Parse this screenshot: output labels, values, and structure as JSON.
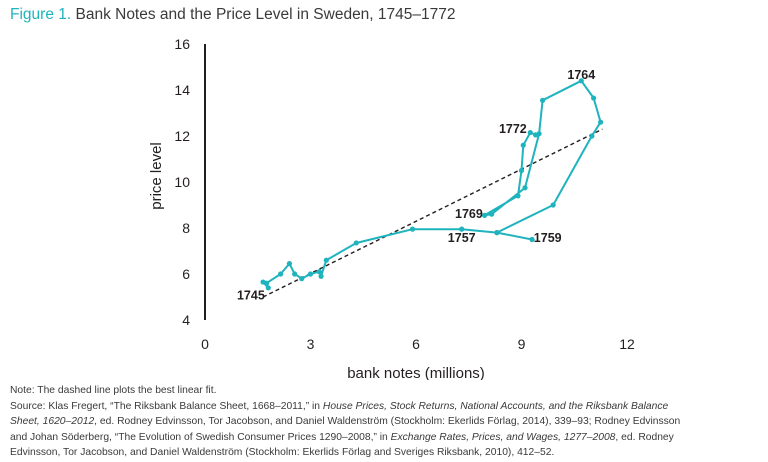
{
  "figure": {
    "number": "Figure 1.",
    "title": "Bank Notes and the Price Level in Sweden, 1745–1772"
  },
  "chart_data": {
    "type": "line",
    "title": "Bank Notes and the Price Level in Sweden, 1745–1772",
    "xlabel": "bank notes (millions)",
    "ylabel": "price level",
    "xlim": [
      0,
      12
    ],
    "ylim": [
      4,
      16
    ],
    "x_ticks": [
      "0",
      "3",
      "6",
      "9",
      "12"
    ],
    "y_ticks": [
      "4",
      "6",
      "8",
      "10",
      "12",
      "14",
      "16"
    ],
    "grid": false,
    "colors": {
      "series": "#1fb3be",
      "fit": "#231f20",
      "text": "#231f20"
    },
    "series": [
      {
        "points": [
          {
            "x": 1.65,
            "y": 5.65
          },
          {
            "x": 1.8,
            "y": 5.4
          },
          {
            "x": 1.75,
            "y": 5.6
          },
          {
            "x": 2.15,
            "y": 6.0
          },
          {
            "x": 2.4,
            "y": 6.45
          },
          {
            "x": 2.55,
            "y": 6.0
          },
          {
            "x": 2.75,
            "y": 5.8
          },
          {
            "x": 3.0,
            "y": 6.0
          },
          {
            "x": 3.25,
            "y": 6.1
          },
          {
            "x": 3.3,
            "y": 5.9
          },
          {
            "x": 3.45,
            "y": 6.6
          },
          {
            "x": 4.3,
            "y": 7.35
          },
          {
            "x": 5.9,
            "y": 7.95
          },
          {
            "x": 7.3,
            "y": 7.95
          },
          {
            "x": 8.3,
            "y": 7.8
          },
          {
            "x": 9.3,
            "y": 7.5
          },
          {
            "x": 8.3,
            "y": 7.8
          },
          {
            "x": 9.9,
            "y": 9.0
          },
          {
            "x": 11.0,
            "y": 12.0
          },
          {
            "x": 11.25,
            "y": 12.6
          },
          {
            "x": 11.05,
            "y": 13.65
          },
          {
            "x": 10.7,
            "y": 14.4
          },
          {
            "x": 9.6,
            "y": 13.55
          },
          {
            "x": 9.5,
            "y": 12.1
          },
          {
            "x": 9.1,
            "y": 9.75
          },
          {
            "x": 8.15,
            "y": 8.6
          },
          {
            "x": 7.95,
            "y": 8.55
          },
          {
            "x": 8.9,
            "y": 9.4
          },
          {
            "x": 9.0,
            "y": 10.5
          },
          {
            "x": 9.05,
            "y": 11.6
          },
          {
            "x": 9.25,
            "y": 12.15
          },
          {
            "x": 9.4,
            "y": 12.05
          }
        ]
      }
    ],
    "fit_line": {
      "from": [
        1.65,
        5.0
      ],
      "to": [
        11.3,
        12.3
      ]
    },
    "annotations": [
      {
        "text": "1745",
        "x": 1.7,
        "y": 5.1
      },
      {
        "text": "1757",
        "x": 7.3,
        "y": 7.6
      },
      {
        "text": "1759",
        "x": 9.35,
        "y": 7.6
      },
      {
        "text": "1769",
        "x": 7.9,
        "y": 8.65
      },
      {
        "text": "1772",
        "x": 9.15,
        "y": 12.35
      },
      {
        "text": "1764",
        "x": 10.7,
        "y": 14.7
      }
    ]
  },
  "notes": {
    "note": "Note: The dashed line plots the best linear fit.",
    "source_lines": [
      [
        {
          "t": "Source: Klas Fregert, “The Riksbank Balance Sheet, 1668–2011,” in "
        },
        {
          "t": "House Prices, Stock Returns, National Accounts, and the Riksbank Balance",
          "i": true
        }
      ],
      [
        {
          "t": "Sheet, 1620–2012",
          "i": true
        },
        {
          "t": ", ed. Rodney Edvinsson, Tor Jacobson, and Daniel Waldenström (Stockholm: Ekerlids Förlag, 2014), 339–93; Rodney Edvinsson"
        }
      ],
      [
        {
          "t": "and Johan Söderberg, “The Evolution of Swedish Consumer Prices 1290–2008,” in "
        },
        {
          "t": "Exchange Rates, Prices, and Wages, 1277–2008",
          "i": true
        },
        {
          "t": ", ed. Rodney"
        }
      ],
      [
        {
          "t": "Edvinsson, Tor Jacobson, and Daniel Waldenström (Stockholm: Ekerlids Förlag and Sveriges Riksbank, 2010), 412–52."
        }
      ]
    ]
  }
}
